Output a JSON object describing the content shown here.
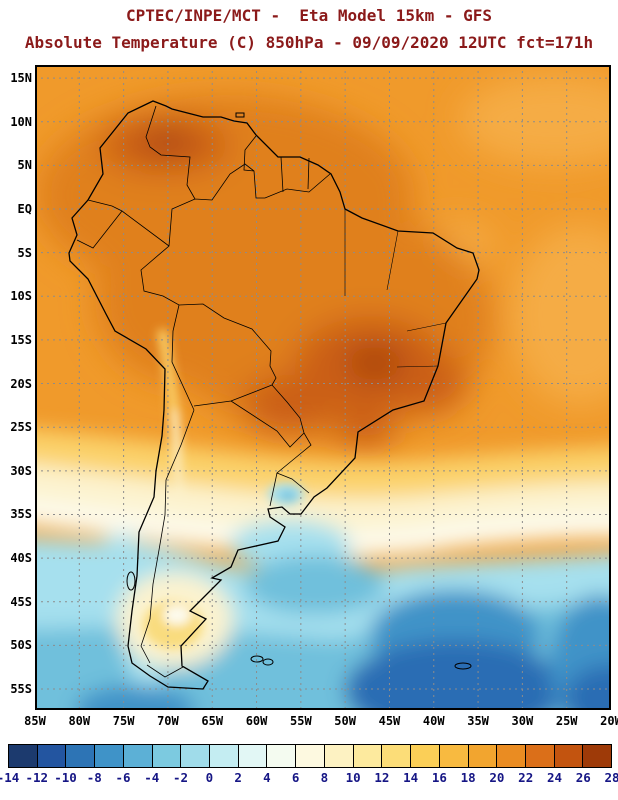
{
  "header": {
    "title_line1": "CPTEC/INPE/MCT -  Eta Model 15km - GFS",
    "title_line2": "Absolute Temperature (C) 850hPa - 09/09/2020 12UTC fct=171h",
    "title_color": "#8B1A1A"
  },
  "map": {
    "lat_labels": [
      "15N",
      "10N",
      "5N",
      "EQ",
      "5S",
      "10S",
      "15S",
      "20S",
      "25S",
      "30S",
      "35S",
      "40S",
      "45S",
      "50S",
      "55S"
    ],
    "lon_labels": [
      "85W",
      "80W",
      "75W",
      "70W",
      "65W",
      "60W",
      "55W",
      "50W",
      "45W",
      "40W",
      "35W",
      "30W",
      "25W",
      "20W"
    ],
    "grid_color": "#8C8C8C",
    "outline_color": "#000000",
    "field": {
      "base": "#F09A2B",
      "warm_light": "#F5AC44",
      "warm2": "#E0801E",
      "warm3": "#CB5F12",
      "warm4": "#A84208",
      "yellow": "#FBD26A",
      "yellow2": "#F9DC7E",
      "cream": "#FCF3CF",
      "white_band": "#FDFBEE",
      "lcyan": "#A6E0EE",
      "mcyan": "#6FC0DC",
      "blue1": "#3F93C8",
      "blue2": "#2C6DB4"
    }
  },
  "colorbar": {
    "tick_labels": [
      "-14",
      "-12",
      "-10",
      "-8",
      "-6",
      "-4",
      "-2",
      "0",
      "2",
      "4",
      "6",
      "8",
      "10",
      "12",
      "14",
      "16",
      "18",
      "20",
      "22",
      "24",
      "26",
      "28"
    ],
    "segment_colors": [
      "#1C3A6E",
      "#2355A0",
      "#2D74B5",
      "#3F93C8",
      "#5CB0D6",
      "#7CCAE0",
      "#A0DCEA",
      "#C4EDF2",
      "#E2F7F5",
      "#F4FBF0",
      "#FDF9E0",
      "#FDF2C2",
      "#FDEA9E",
      "#FCDD78",
      "#FBCF57",
      "#F8BA40",
      "#F2A52F",
      "#EA8C22",
      "#DB6F19",
      "#C3540F",
      "#9E3A08"
    ],
    "label_color": "#161685"
  }
}
